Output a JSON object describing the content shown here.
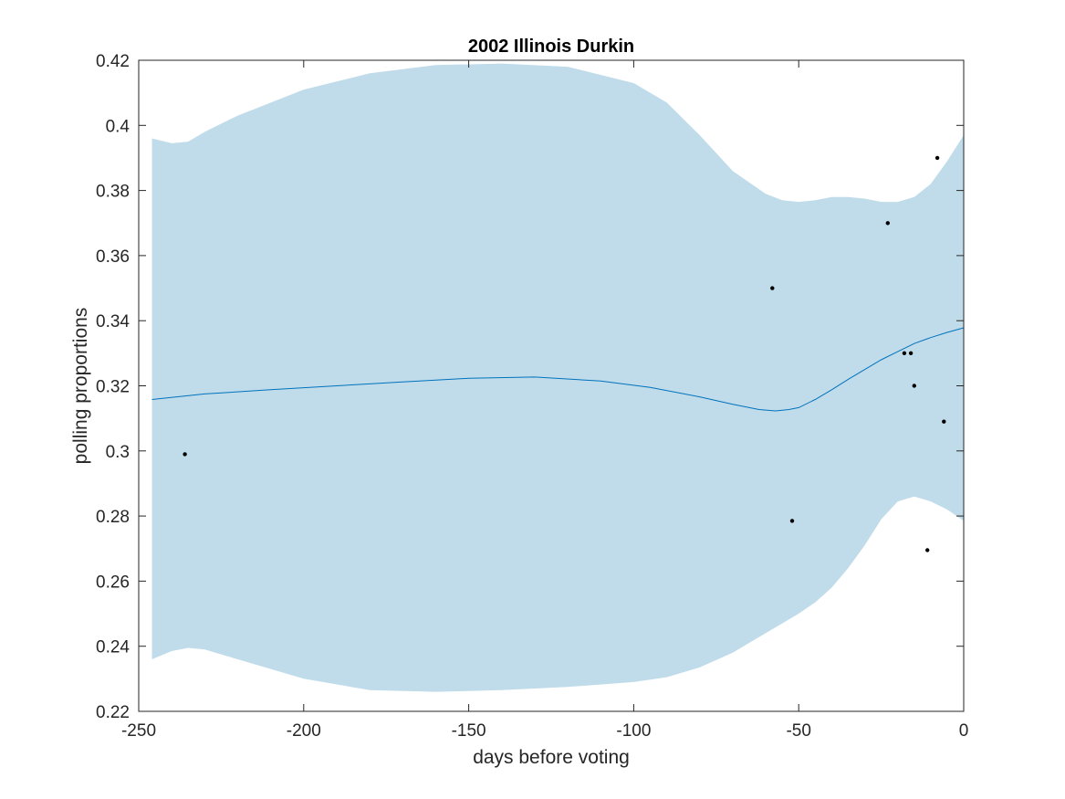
{
  "chart_data": {
    "type": "line",
    "title": "2002 Illinois Durkin",
    "xlabel": "days before voting",
    "ylabel": "polling proportions",
    "xlim": [
      -250,
      0
    ],
    "ylim": [
      0.22,
      0.42
    ],
    "xticks": [
      -250,
      -200,
      -150,
      -100,
      -50,
      0
    ],
    "xtick_labels": [
      "-250",
      "-200",
      "-150",
      "-100",
      "-50",
      "0"
    ],
    "yticks": [
      0.22,
      0.24,
      0.26,
      0.28,
      0.3,
      0.32,
      0.34,
      0.36,
      0.38,
      0.4,
      0.42
    ],
    "ytick_labels": [
      "0.22",
      "0.24",
      "0.26",
      "0.28",
      "0.3",
      "0.32",
      "0.34",
      "0.36",
      "0.38",
      "0.4",
      "0.42"
    ],
    "grid": false,
    "legend": "none",
    "colors": {
      "band": "#c0dcea",
      "line": "#0072bd",
      "points": "#000000",
      "axes": "#262626"
    },
    "band": {
      "x": [
        -246,
        -240,
        -235,
        -230,
        -220,
        -200,
        -180,
        -160,
        -140,
        -120,
        -100,
        -90,
        -80,
        -70,
        -60,
        -55,
        -50,
        -45,
        -40,
        -35,
        -30,
        -25,
        -20,
        -15,
        -10,
        -5,
        0
      ],
      "upper": [
        0.396,
        0.3945,
        0.395,
        0.398,
        0.403,
        0.411,
        0.416,
        0.4185,
        0.419,
        0.418,
        0.413,
        0.407,
        0.397,
        0.386,
        0.379,
        0.377,
        0.3765,
        0.377,
        0.378,
        0.378,
        0.3775,
        0.3765,
        0.3765,
        0.378,
        0.382,
        0.389,
        0.397
      ],
      "lower": [
        0.236,
        0.2385,
        0.2395,
        0.239,
        0.236,
        0.23,
        0.2265,
        0.226,
        0.2265,
        0.2275,
        0.229,
        0.2305,
        0.2335,
        0.238,
        0.244,
        0.247,
        0.25,
        0.2535,
        0.258,
        0.264,
        0.271,
        0.279,
        0.2845,
        0.286,
        0.2845,
        0.282,
        0.2785
      ]
    },
    "series": [
      {
        "type": "line",
        "x": [
          -246,
          -230,
          -210,
          -190,
          -170,
          -150,
          -130,
          -110,
          -95,
          -80,
          -70,
          -62,
          -57,
          -53,
          -50,
          -45,
          -40,
          -35,
          -30,
          -25,
          -20,
          -15,
          -10,
          -5,
          0
        ],
        "y": [
          0.3158,
          0.3175,
          0.3188,
          0.32,
          0.3212,
          0.3223,
          0.3227,
          0.3215,
          0.3195,
          0.3166,
          0.3143,
          0.3127,
          0.3123,
          0.3127,
          0.3133,
          0.3158,
          0.3188,
          0.322,
          0.325,
          0.328,
          0.3305,
          0.333,
          0.3348,
          0.3364,
          0.3378
        ]
      },
      {
        "type": "scatter",
        "x": [
          -236,
          -58,
          -52,
          -23,
          -18,
          -16,
          -15,
          -11,
          -8,
          -6
        ],
        "y": [
          0.299,
          0.35,
          0.2785,
          0.37,
          0.33,
          0.33,
          0.32,
          0.2695,
          0.39,
          0.309
        ]
      }
    ]
  }
}
